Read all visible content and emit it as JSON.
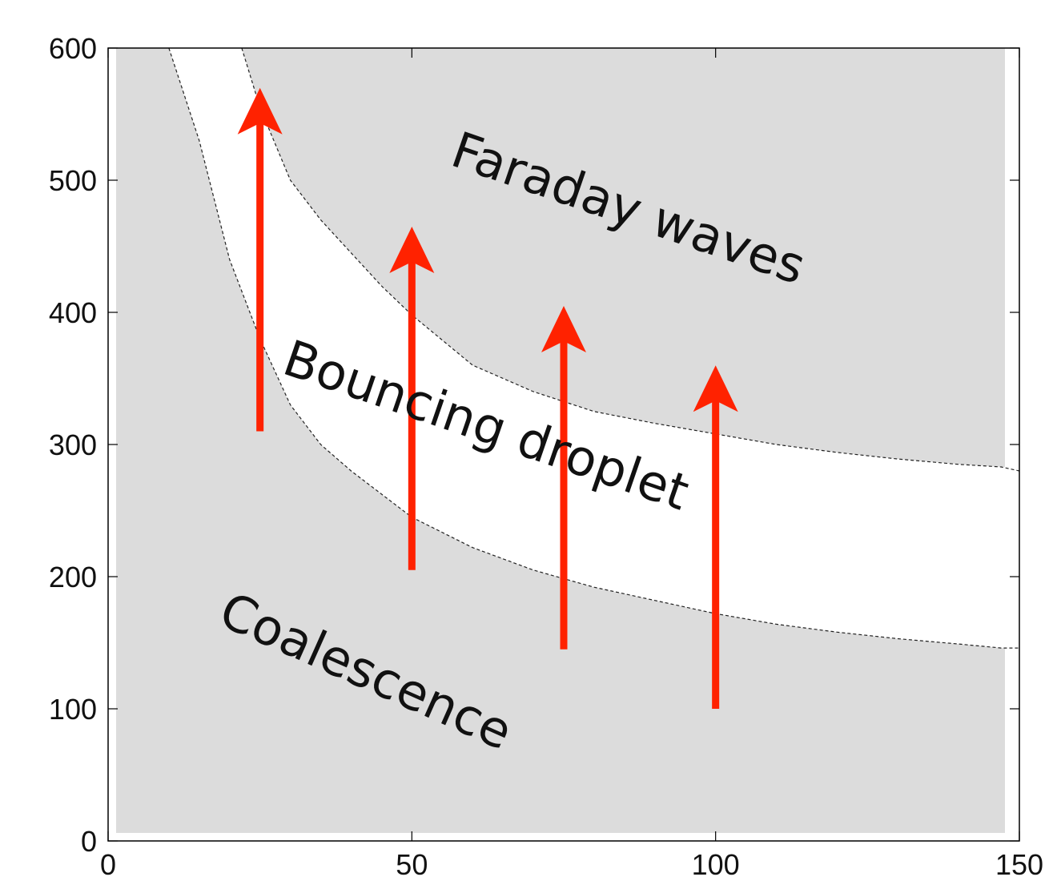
{
  "chart_data": {
    "type": "area",
    "title": "",
    "xlabel": "",
    "ylabel": "",
    "xlim": [
      0,
      150
    ],
    "ylim": [
      0,
      600
    ],
    "x_ticks": [
      0,
      50,
      100,
      150
    ],
    "y_ticks": [
      0,
      100,
      200,
      300,
      400,
      500,
      600
    ],
    "grid": false,
    "legend": "none",
    "regions": [
      {
        "name": "Faraday waves",
        "fill": "#dcdcdc",
        "position": "upper"
      },
      {
        "name": "Bouncing droplet",
        "fill": "#ffffff",
        "position": "middle"
      },
      {
        "name": "Coalescence",
        "fill": "#dcdcdc",
        "position": "lower"
      }
    ],
    "boundaries": {
      "lower": {
        "x": [
          10,
          15,
          20,
          25,
          30,
          35,
          40,
          50,
          60,
          70,
          80,
          90,
          100,
          110,
          120,
          130,
          140,
          147
        ],
        "y": [
          600,
          530,
          440,
          380,
          330,
          300,
          280,
          245,
          222,
          205,
          192,
          182,
          172,
          164,
          158,
          153,
          149,
          146
        ]
      },
      "upper": {
        "x": [
          22,
          25,
          30,
          35,
          40,
          45,
          50,
          60,
          70,
          80,
          90,
          100,
          110,
          120,
          130,
          140,
          147
        ],
        "y": [
          600,
          555,
          500,
          470,
          445,
          420,
          398,
          360,
          340,
          325,
          316,
          308,
          300,
          294,
          289,
          285,
          283
        ]
      }
    },
    "arrows": [
      {
        "x": 25,
        "y_start": 310,
        "y_end": 565
      },
      {
        "x": 50,
        "y_start": 205,
        "y_end": 460
      },
      {
        "x": 75,
        "y_start": 145,
        "y_end": 400
      },
      {
        "x": 100,
        "y_start": 100,
        "y_end": 355
      }
    ],
    "arrow_color": "#ff2200",
    "boundary_color": "#222222",
    "axis_color": "#000000"
  }
}
